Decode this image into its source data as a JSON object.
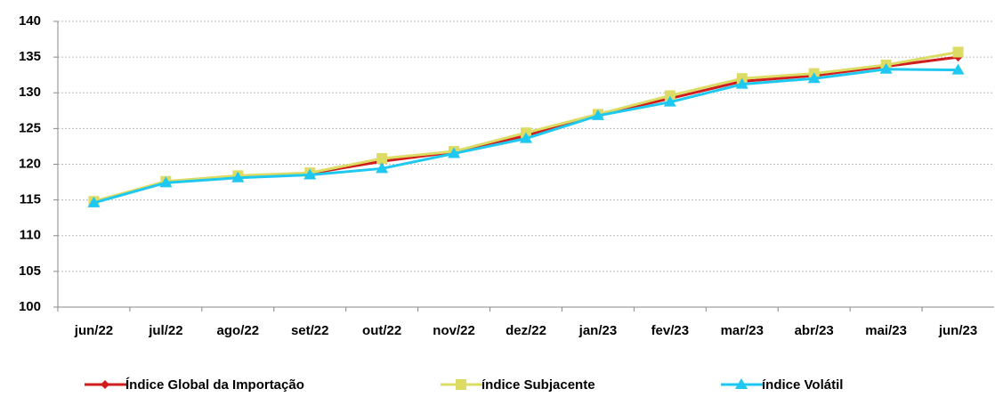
{
  "chart_data": {
    "type": "line",
    "categories": [
      "jun/22",
      "jul/22",
      "ago/22",
      "set/22",
      "out/22",
      "nov/22",
      "dez/22",
      "jan/23",
      "fev/23",
      "mar/23",
      "abr/23",
      "mai/23",
      "jun/23"
    ],
    "series": [
      {
        "name": "Índice Global da Importação",
        "color": "#d01c1c",
        "marker": "diamond",
        "values": [
          114.7,
          117.5,
          118.3,
          118.7,
          120.4,
          121.7,
          124.0,
          126.9,
          129.2,
          131.6,
          132.4,
          133.7,
          135.0
        ]
      },
      {
        "name": "índice Subjacente",
        "color": "#dcdc64",
        "marker": "square",
        "values": [
          114.8,
          117.6,
          118.4,
          118.8,
          120.8,
          121.8,
          124.4,
          127.0,
          129.6,
          132.0,
          132.7,
          133.9,
          135.7
        ]
      },
      {
        "name": "índice Volátil",
        "color": "#1ec8f0",
        "marker": "triangle",
        "values": [
          114.6,
          117.4,
          118.1,
          118.5,
          119.4,
          121.5,
          123.6,
          126.8,
          128.7,
          131.2,
          132.0,
          133.3,
          133.2
        ]
      }
    ],
    "ylim": [
      100,
      140
    ],
    "yticks": [
      100,
      105,
      110,
      115,
      120,
      125,
      130,
      135,
      140
    ],
    "grid": true,
    "legend": "bottom"
  }
}
